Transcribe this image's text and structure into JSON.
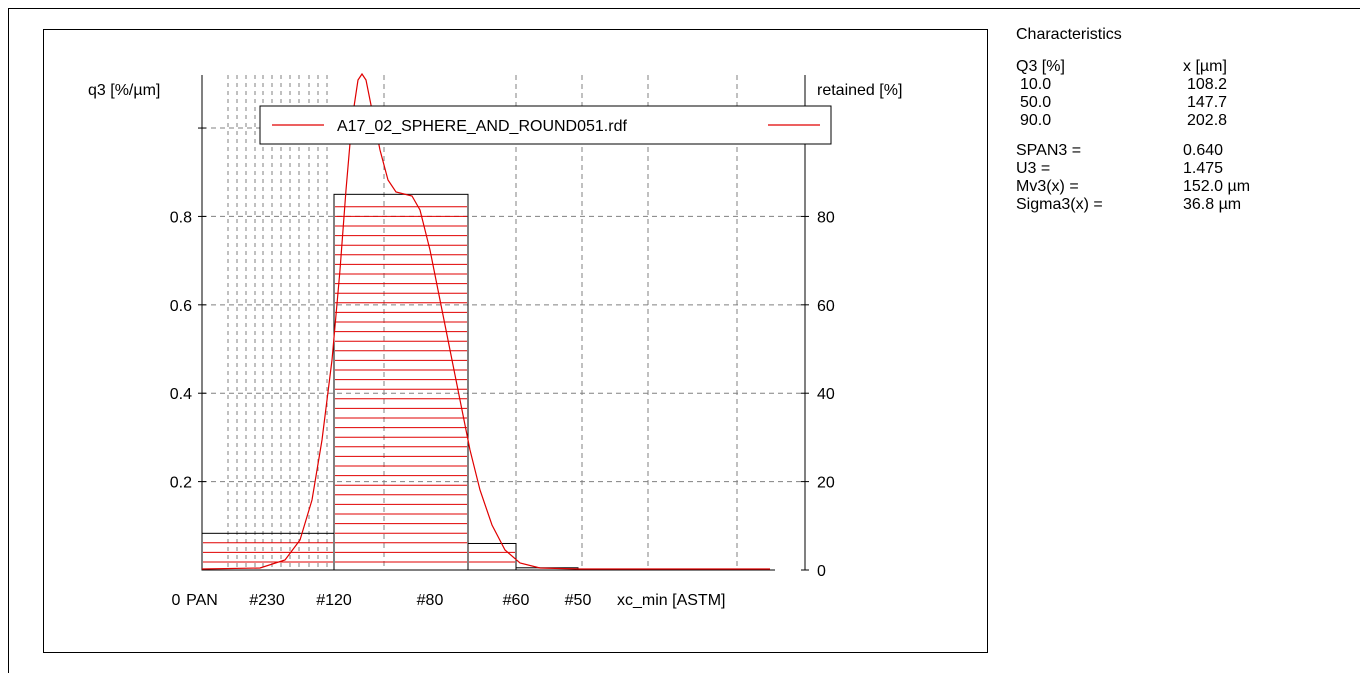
{
  "chart_data": {
    "type": "bar",
    "ylabel_left": "q3 [%/µm]",
    "ylabel_right": "retained [%]",
    "xlabel": "xc_min [ASTM]",
    "x_tick_labels": [
      "0",
      "PAN",
      "#230",
      "#120",
      "#80",
      "#60",
      "#50"
    ],
    "y_left_ticks": [
      "0.2",
      "0.4",
      "0.6",
      "0.8"
    ],
    "y_right_ticks": [
      "0",
      "20",
      "40",
      "60",
      "80"
    ],
    "ylim_left": [
      0,
      1.12
    ],
    "ylim_right": [
      0,
      112
    ],
    "grid": true,
    "legend": {
      "position": "top-center",
      "entries": [
        "A17_02_SPHERE_AND_ROUND051.rdf"
      ]
    },
    "bars": [
      {
        "from": "PAN",
        "to": "#120",
        "retained": 8.3
      },
      {
        "from": "#120",
        "to": "#60",
        "retained": 85.0
      },
      {
        "from": "#60",
        "to": "#60",
        "retained": 6.0
      },
      {
        "from": "#60",
        "to": "#50",
        "retained": 0.5
      }
    ],
    "density_curve": {
      "series_name": "A17_02_SPHERE_AND_ROUND051.rdf",
      "color": "#e00000",
      "peak_q3": 1.12,
      "shoulder_q3": 0.85
    },
    "colors": {
      "series": "#e00000",
      "grid": "#808080"
    }
  },
  "characteristics": {
    "title": "Characteristics",
    "col1_header": "Q3 [%]",
    "col2_header": "x [µm]",
    "rows": [
      {
        "q": "10.0",
        "x": "108.2"
      },
      {
        "q": "50.0",
        "x": "147.7"
      },
      {
        "q": "90.0",
        "x": "202.8"
      }
    ],
    "stats": [
      {
        "k": "SPAN3 =",
        "v": "0.640"
      },
      {
        "k": "U3 =",
        "v": "1.475"
      },
      {
        "k": "Mv3(x) =",
        "v": "152.0 µm"
      },
      {
        "k": "Sigma3(x) =",
        "v": "36.8 µm"
      }
    ]
  }
}
